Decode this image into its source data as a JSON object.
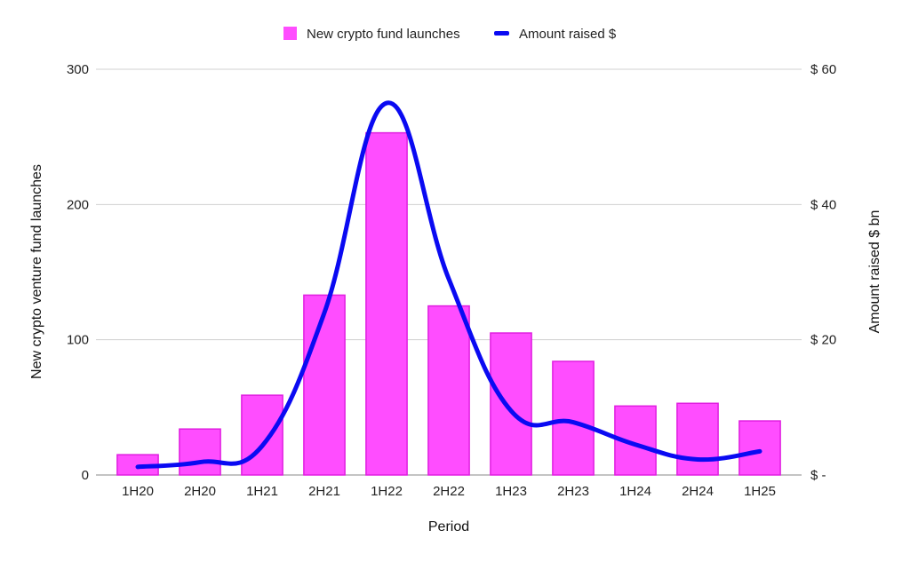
{
  "chart_data": {
    "type": "bar",
    "categories": [
      "1H20",
      "2H20",
      "1H21",
      "2H21",
      "1H22",
      "2H22",
      "1H23",
      "2H23",
      "1H24",
      "2H24",
      "1H25"
    ],
    "series": [
      {
        "name": "New crypto fund launches",
        "type": "bar",
        "axis": "left",
        "color": "#ff4dff",
        "values": [
          15,
          34,
          59,
          133,
          253,
          125,
          105,
          84,
          51,
          53,
          40
        ]
      },
      {
        "name": "Amount raised $",
        "type": "line",
        "axis": "right",
        "color": "#0a0af2",
        "values": [
          1.2,
          1.9,
          4.3,
          24,
          55,
          29,
          9.5,
          7.8,
          4.5,
          2.3,
          3.5
        ]
      }
    ],
    "xlabel": "Period",
    "ylabel": "New crypto venture fund launches",
    "y2label": "Amount raised $ bn",
    "ylim": [
      0,
      300
    ],
    "y2lim": [
      0,
      60
    ],
    "yticks": [
      "0",
      "100",
      "200",
      "300"
    ],
    "y2ticks": [
      "$ -",
      "$ 20",
      "$ 40",
      "$ 60"
    ],
    "grid": true,
    "legend_position": "top-center"
  }
}
